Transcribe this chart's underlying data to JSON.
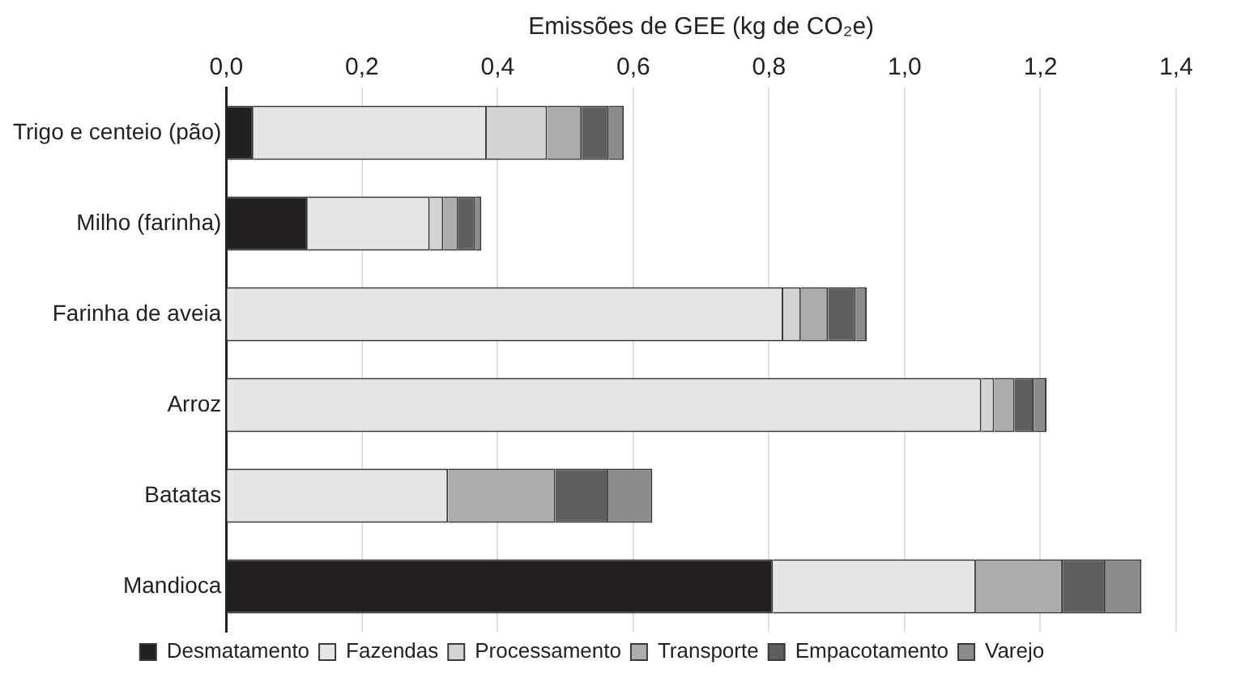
{
  "chart_data": {
    "type": "bar",
    "orientation": "horizontal",
    "stacked": true,
    "xlabel": "Emissões de GEE (kg de CO₂e)",
    "categories": [
      "Trigo e centeio (pão)",
      "Milho (farinha)",
      "Farinha de aveia",
      "Arroz",
      "Batatas",
      "Mandioca"
    ],
    "series": [
      {
        "name": "Desmatamento",
        "color": "#231f20",
        "values": [
          0.04,
          0.12,
          0,
          0,
          0,
          0.806
        ]
      },
      {
        "name": "Fazendas",
        "color": "#e6e6e6",
        "values": [
          0.344,
          0.18,
          0.821,
          1.113,
          0.327,
          0.299
        ]
      },
      {
        "name": "Processamento",
        "color": "#d4d4d4",
        "values": [
          0.089,
          0.02,
          0.026,
          0.019,
          0,
          0
        ]
      },
      {
        "name": "Transporte",
        "color": "#adadad",
        "values": [
          0.051,
          0.022,
          0.04,
          0.03,
          0.158,
          0.128
        ]
      },
      {
        "name": "Empacotamento",
        "color": "#5e5e5e",
        "values": [
          0.04,
          0.025,
          0.041,
          0.028,
          0.078,
          0.063
        ]
      },
      {
        "name": "Varejo",
        "color": "#8c8c8c",
        "values": [
          0.022,
          0.009,
          0.016,
          0.019,
          0.065,
          0.053
        ]
      }
    ],
    "xlim": [
      0,
      1.4
    ],
    "xticks": [
      {
        "value": 0,
        "label": "0,0"
      },
      {
        "value": 0.2,
        "label": "0,2"
      },
      {
        "value": 0.4,
        "label": "0,4"
      },
      {
        "value": 0.6,
        "label": "0,6"
      },
      {
        "value": 0.8,
        "label": "0,8"
      },
      {
        "value": 1,
        "label": "1,0"
      },
      {
        "value": 1.2,
        "label": "1,2"
      },
      {
        "value": 1.4,
        "label": "1,4"
      }
    ],
    "grid": "x",
    "legend": "bottom"
  }
}
